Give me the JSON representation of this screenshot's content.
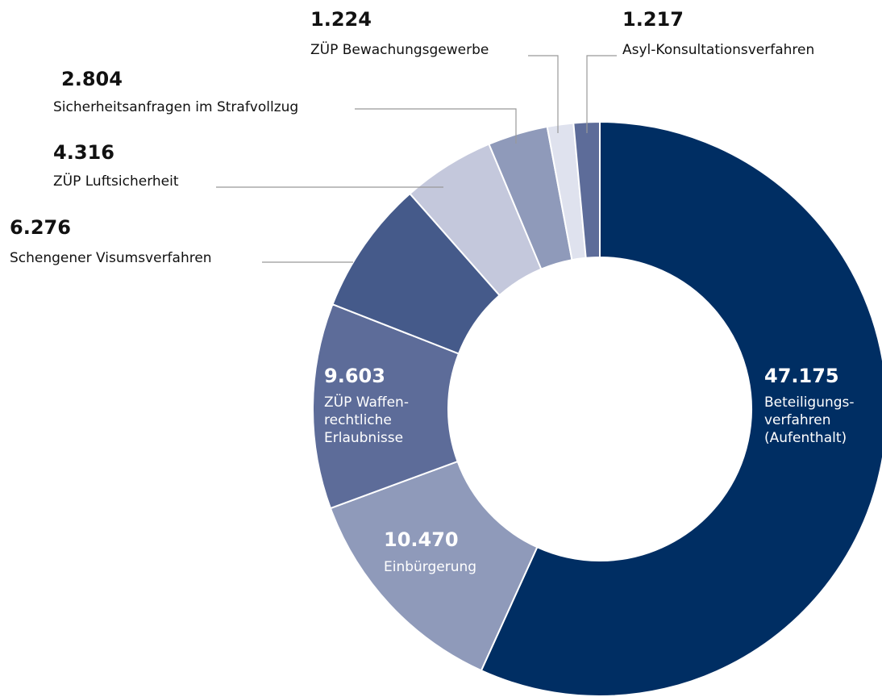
{
  "chart_data": {
    "type": "donut",
    "categories": [
      "Beteiligungs-\nverfahren\n(Aufenthalt)",
      "Einbürgerung",
      "ZÜP Waffen-\nrechtliche\nErlaubnisse",
      "Schengener Visumsverfahren",
      "ZÜP Luftsicherheit",
      "Sicherheitsanfragen im Strafvollzug",
      "ZÜP Bewachungsgewerbe",
      "Asyl-Konsultationsverfahren"
    ],
    "values": [
      47175,
      10470,
      9603,
      6276,
      4316,
      2804,
      1224,
      1217
    ],
    "value_labels": [
      "47.175",
      "10.470",
      "9.603",
      "6.276",
      "4.316",
      "2.804",
      "1.224",
      "1.217"
    ],
    "colors": [
      "#002e63",
      "#8f9aba",
      "#5d6c99",
      "#455a8a",
      "#c4c8dc",
      "#8f9aba",
      "#dfe2ee",
      "#5d6c99"
    ]
  }
}
